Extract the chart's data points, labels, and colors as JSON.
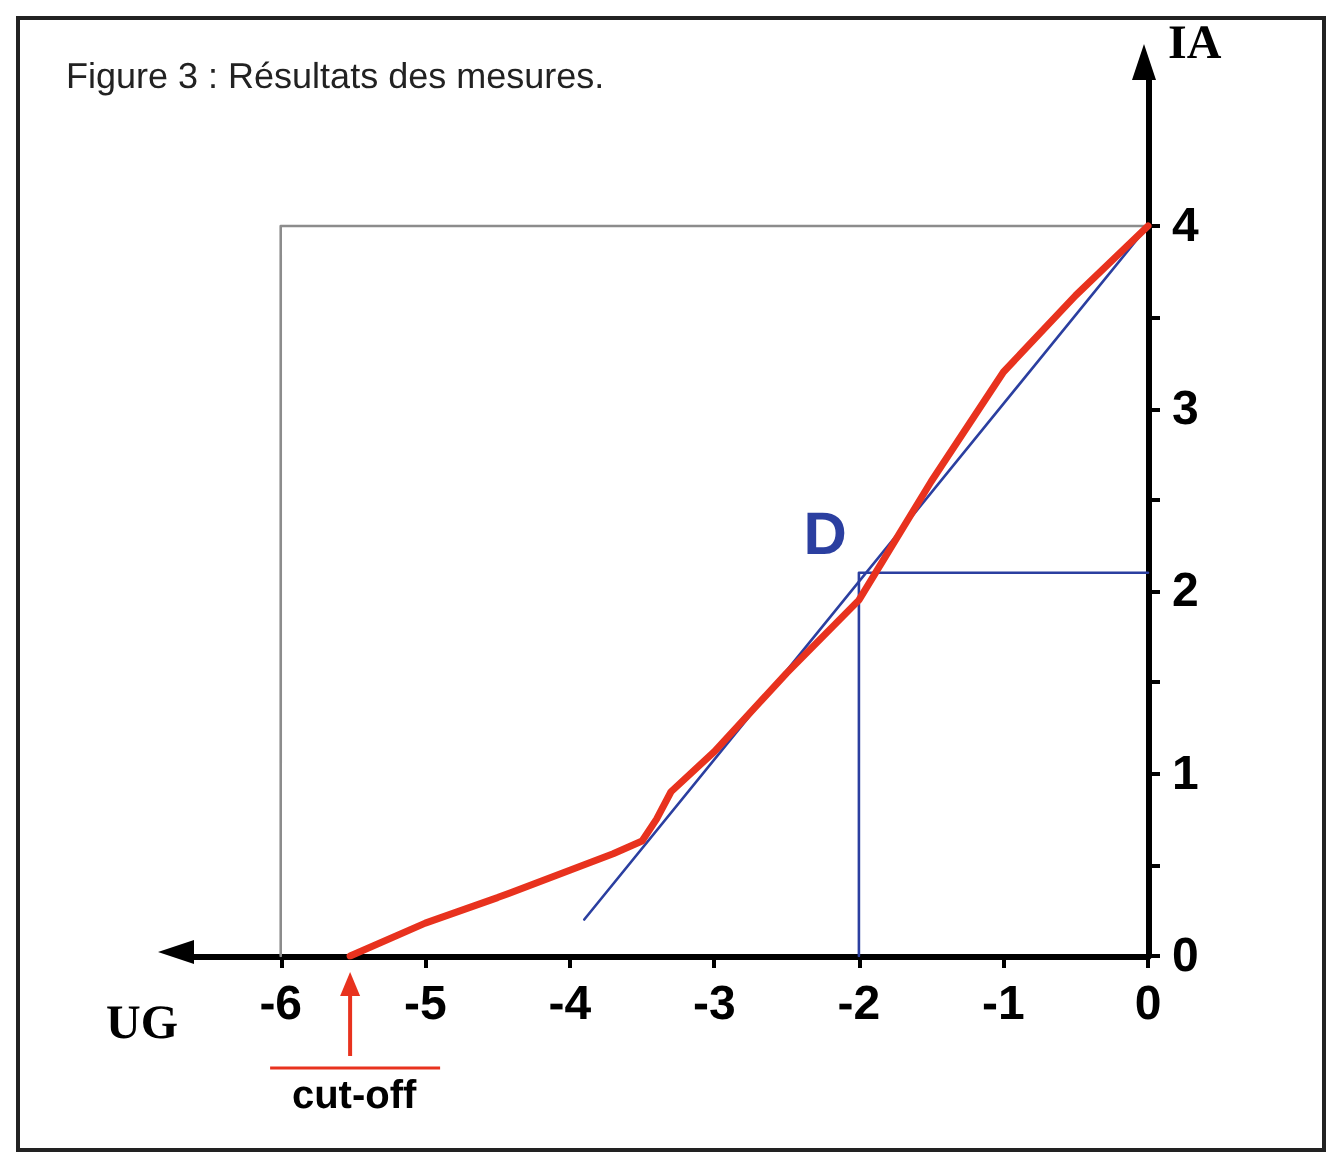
{
  "chart_data": {
    "type": "line",
    "title": "Figure 3 : Résultats des mesures.",
    "xlabel": "UG",
    "ylabel": "IA",
    "xlim": [
      -6.6,
      0
    ],
    "ylim": [
      0,
      4.8
    ],
    "xticks": [
      -6,
      -5,
      -4,
      -3,
      -2,
      -1,
      0
    ],
    "yticks": [
      0,
      {
        "value": 0.5,
        "label": null
      },
      1,
      {
        "value": 1.5,
        "label": null
      },
      2,
      {
        "value": 2.5,
        "label": null
      },
      3,
      {
        "value": 3.5,
        "label": null
      },
      4
    ],
    "series": [
      {
        "color": "#e8321e",
        "x": [
          -5.52,
          -5,
          -4.5,
          -4,
          -3.7,
          -3.5,
          -3.4,
          -3.3,
          -3,
          -2.5,
          -2,
          -1.5,
          -1,
          -0.5,
          0
        ],
        "values": [
          0,
          0.18,
          0.32,
          0.47,
          0.56,
          0.63,
          0.75,
          0.9,
          1.12,
          1.55,
          1.95,
          2.6,
          3.2,
          3.62,
          4
        ]
      },
      {
        "color": "#2b3fa0",
        "x": [
          -3.9,
          0
        ],
        "values": [
          0.2,
          4
        ]
      },
      {
        "color": "#2b3fa0",
        "x": [
          -2,
          -2,
          0
        ],
        "values": [
          0,
          2.1,
          2.1
        ]
      },
      {
        "color": "#8c8c8c",
        "x": [
          -6,
          -6,
          0
        ],
        "values": [
          0,
          4,
          4
        ]
      }
    ],
    "annotations": [
      {
        "text": "D",
        "x": -2,
        "y": 2.1
      },
      {
        "text": "cut-off",
        "x": -5.52,
        "y": 0
      }
    ],
    "marker": "none",
    "grid": false
  }
}
